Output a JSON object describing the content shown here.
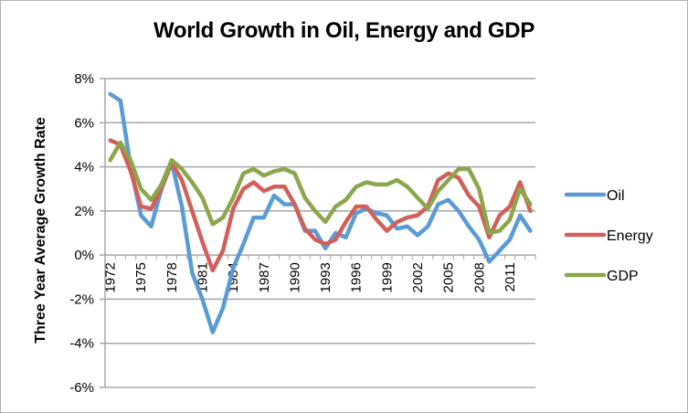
{
  "chart_data": {
    "type": "line",
    "title": "World Growth in Oil, Energy and GDP",
    "xlabel": "",
    "ylabel": "Three Year Average Growth Rate",
    "ylim": [
      -6,
      8
    ],
    "yticks": [
      8,
      6,
      4,
      2,
      0,
      -2,
      -4,
      -6
    ],
    "ytick_labels": [
      "8%",
      "6%",
      "4%",
      "2%",
      "0%",
      "-2%",
      "-4%",
      "-6%"
    ],
    "x": [
      1972,
      1973,
      1974,
      1975,
      1976,
      1977,
      1978,
      1979,
      1980,
      1981,
      1982,
      1983,
      1984,
      1985,
      1986,
      1987,
      1988,
      1989,
      1990,
      1991,
      1992,
      1993,
      1994,
      1995,
      1996,
      1997,
      1998,
      1999,
      2000,
      2001,
      2002,
      2003,
      2004,
      2005,
      2006,
      2007,
      2008,
      2009,
      2010,
      2011,
      2012,
      2013
    ],
    "xtick_labels": [
      "1972",
      "1975",
      "1978",
      "1981",
      "1984",
      "1987",
      "1990",
      "1993",
      "1996",
      "1999",
      "2002",
      "2005",
      "2008",
      "2011"
    ],
    "grid": "horizontal",
    "legend_position": "right",
    "series": [
      {
        "name": "Oil",
        "color": "#5b9bd5",
        "values": [
          7.3,
          7.0,
          4.0,
          1.8,
          1.3,
          3.0,
          4.2,
          2.2,
          -0.8,
          -2.0,
          -3.5,
          -2.4,
          -0.6,
          0.5,
          1.7,
          1.7,
          2.7,
          2.3,
          2.3,
          1.1,
          1.1,
          0.3,
          1.0,
          0.8,
          1.9,
          2.1,
          1.9,
          1.8,
          1.2,
          1.3,
          0.9,
          1.3,
          2.3,
          2.5,
          2.0,
          1.3,
          0.7,
          -0.3,
          0.2,
          0.7,
          1.8,
          1.1
        ]
      },
      {
        "name": "Energy",
        "color": "#d2605a",
        "values": [
          5.2,
          5.0,
          3.8,
          2.2,
          2.1,
          3.0,
          4.2,
          3.4,
          2.0,
          0.6,
          -0.7,
          0.2,
          2.1,
          3.0,
          3.3,
          2.9,
          3.1,
          3.1,
          2.3,
          1.2,
          0.7,
          0.5,
          0.7,
          1.5,
          2.2,
          2.2,
          1.6,
          1.1,
          1.5,
          1.7,
          1.8,
          2.2,
          3.4,
          3.7,
          3.5,
          2.7,
          2.2,
          0.8,
          1.8,
          2.2,
          3.3,
          2.0
        ]
      },
      {
        "name": "GDP",
        "color": "#8ba64b",
        "values": [
          4.3,
          5.1,
          4.3,
          3.0,
          2.5,
          3.2,
          4.3,
          3.9,
          3.3,
          2.6,
          1.4,
          1.7,
          2.6,
          3.7,
          3.9,
          3.6,
          3.8,
          3.9,
          3.7,
          2.6,
          2.0,
          1.5,
          2.2,
          2.5,
          3.1,
          3.3,
          3.2,
          3.2,
          3.4,
          3.1,
          2.6,
          2.1,
          2.9,
          3.4,
          3.9,
          3.9,
          3.0,
          1.0,
          1.1,
          1.6,
          3.0,
          2.3
        ]
      }
    ]
  }
}
